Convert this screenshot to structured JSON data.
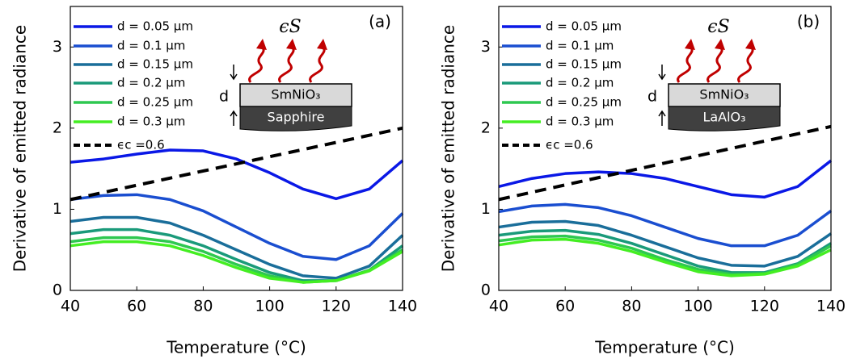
{
  "chart_data": [
    {
      "type": "line",
      "panel_label": "(a)",
      "xlabel": "Temperature (°C)",
      "ylabel": "Derivative of emitted radiance",
      "xlim": [
        40,
        140
      ],
      "ylim": [
        0,
        3.5
      ],
      "xticks": [
        40,
        60,
        80,
        100,
        120,
        140
      ],
      "yticks": [
        0,
        1,
        2,
        3
      ],
      "legend": "upper left",
      "x": [
        40,
        50,
        60,
        70,
        80,
        90,
        100,
        110,
        120,
        130,
        140
      ],
      "series": [
        {
          "name": "d = 0.05 μm",
          "color": "#0a18e6",
          "values": [
            1.58,
            1.62,
            1.68,
            1.73,
            1.72,
            1.62,
            1.45,
            1.25,
            1.13,
            1.25,
            1.6
          ]
        },
        {
          "name": "d = 0.1 μm",
          "color": "#1a4ed0",
          "values": [
            1.12,
            1.17,
            1.18,
            1.12,
            0.98,
            0.78,
            0.58,
            0.42,
            0.38,
            0.55,
            0.95
          ]
        },
        {
          "name": "d = 0.15 μm",
          "color": "#1a6e9a",
          "values": [
            0.85,
            0.9,
            0.9,
            0.83,
            0.68,
            0.5,
            0.32,
            0.18,
            0.15,
            0.3,
            0.68
          ]
        },
        {
          "name": "d = 0.2 μm",
          "color": "#1a9a7a",
          "values": [
            0.7,
            0.75,
            0.75,
            0.68,
            0.55,
            0.38,
            0.22,
            0.12,
            0.12,
            0.25,
            0.55
          ]
        },
        {
          "name": "d = 0.25 μm",
          "color": "#2ec850",
          "values": [
            0.6,
            0.65,
            0.65,
            0.6,
            0.48,
            0.32,
            0.18,
            0.1,
            0.12,
            0.25,
            0.5
          ]
        },
        {
          "name": "d = 0.3 μm",
          "color": "#44ee22",
          "values": [
            0.55,
            0.6,
            0.6,
            0.55,
            0.43,
            0.28,
            0.15,
            0.1,
            0.12,
            0.24,
            0.48
          ]
        },
        {
          "name": "ϵc =0.6",
          "color": "#000000",
          "dashed": true,
          "x": [
            40,
            140
          ],
          "values": [
            1.12,
            2.0
          ]
        }
      ],
      "inset": {
        "emission": "ϵS",
        "film": "SmNiO₃",
        "substrate": "Sapphire",
        "thickness": "d"
      }
    },
    {
      "type": "line",
      "panel_label": "(b)",
      "xlabel": "Temperature (°C)",
      "ylabel": "Derivative of emitted radiance",
      "xlim": [
        40,
        140
      ],
      "ylim": [
        0,
        3.5
      ],
      "xticks": [
        40,
        60,
        80,
        100,
        120,
        140
      ],
      "yticks": [
        0,
        1,
        2,
        3
      ],
      "legend": "upper left",
      "x": [
        40,
        50,
        60,
        70,
        80,
        90,
        100,
        110,
        120,
        130,
        140
      ],
      "series": [
        {
          "name": "d = 0.05 μm",
          "color": "#0a18e6",
          "values": [
            1.28,
            1.38,
            1.44,
            1.46,
            1.44,
            1.38,
            1.28,
            1.18,
            1.15,
            1.28,
            1.6
          ]
        },
        {
          "name": "d = 0.1 μm",
          "color": "#1a4ed0",
          "values": [
            0.97,
            1.04,
            1.06,
            1.02,
            0.92,
            0.78,
            0.64,
            0.55,
            0.55,
            0.68,
            0.98
          ]
        },
        {
          "name": "d = 0.15 μm",
          "color": "#1a6e9a",
          "values": [
            0.78,
            0.84,
            0.85,
            0.8,
            0.68,
            0.54,
            0.4,
            0.31,
            0.3,
            0.42,
            0.7
          ]
        },
        {
          "name": "d = 0.2 μm",
          "color": "#1a9a7a",
          "values": [
            0.68,
            0.73,
            0.74,
            0.69,
            0.58,
            0.44,
            0.3,
            0.22,
            0.22,
            0.33,
            0.58
          ]
        },
        {
          "name": "d = 0.25 μm",
          "color": "#2ec850",
          "values": [
            0.61,
            0.66,
            0.67,
            0.62,
            0.52,
            0.38,
            0.26,
            0.2,
            0.21,
            0.32,
            0.55
          ]
        },
        {
          "name": "d = 0.3 μm",
          "color": "#44ee22",
          "values": [
            0.56,
            0.62,
            0.63,
            0.58,
            0.48,
            0.35,
            0.23,
            0.18,
            0.2,
            0.3,
            0.5
          ]
        },
        {
          "name": "ϵc =0.6",
          "color": "#000000",
          "dashed": true,
          "x": [
            40,
            140
          ],
          "values": [
            1.12,
            2.02
          ]
        }
      ],
      "inset": {
        "emission": "ϵS",
        "film": "SmNiO₃",
        "substrate": "LaAlO₃",
        "thickness": "d"
      }
    }
  ]
}
